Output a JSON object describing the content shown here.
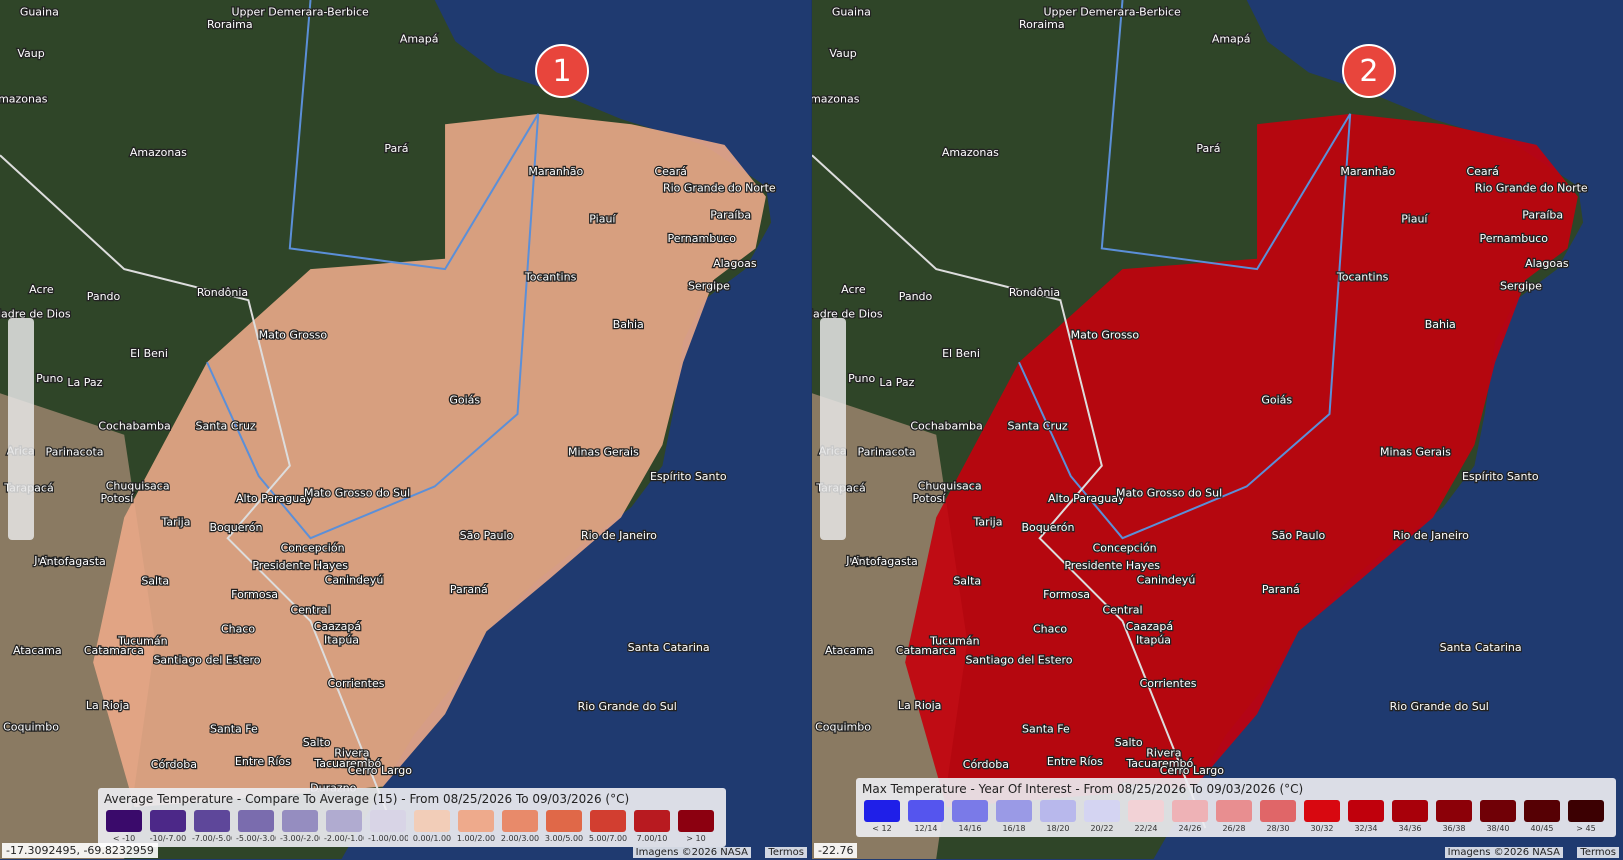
{
  "close_button": "×",
  "map_labels": [
    "Guaina",
    "Roraima",
    "Upper Demerara-Berbice",
    "Amapá",
    "Vaup",
    "mazonas",
    "Amazonas",
    "Pará",
    "Maranhão",
    "Ceará",
    "Rio Grande do Norte",
    "Piauí",
    "Paraíba",
    "Pernambuco",
    "Alagoas",
    "Sergipe",
    "Tocantins",
    "Acre",
    "Pando",
    "Rondônia",
    "Madre de Dios",
    "Mato Grosso",
    "Bahia",
    "El Beni",
    "Puno",
    "La Paz",
    "Goiás",
    "Cochabamba",
    "Santa Cruz",
    "Arica",
    "Parinacota",
    "Minas Gerais",
    "Tarapacá",
    "Chuquisaca",
    "Potosí",
    "Espírito Santo",
    "Alto Paraguay",
    "Mato Grosso do Sul",
    "Tarija",
    "Boquerón",
    "Concepción",
    "Presidente Hayes",
    "Jujuy",
    "Antofagasta",
    "São Paulo",
    "Rio de Janeiro",
    "Salta",
    "Canindeyú",
    "Formosa",
    "Paraná",
    "Central",
    "Caazapá",
    "Itapúa",
    "Chaco",
    "Tucumán",
    "Catamarca",
    "Santiago del Estero",
    "Santa Catarina",
    "Atacama",
    "Corrientes",
    "Rio Grande do Sul",
    "La Rioja",
    "Santa Fe",
    "Salto",
    "Rivera",
    "Coquimbo",
    "Córdoba",
    "Entre Ríos",
    "Tacuarembó",
    "Cerro Largo",
    "Durazno"
  ],
  "panels": [
    {
      "marker": "1",
      "legend": {
        "title": "Average Temperature - Compare To Average (15) - From 08/25/2026 To 09/03/2026 (°C)",
        "bins": [
          {
            "label": "< -10",
            "color": "#3a0a6b"
          },
          {
            "label": "-10/-7.00",
            "color": "#4c2888"
          },
          {
            "label": "-7.00/-5.00",
            "color": "#5e479a"
          },
          {
            "label": "-5.00/-3.00",
            "color": "#7a6cae"
          },
          {
            "label": "-3.00/-2.00",
            "color": "#958dc0"
          },
          {
            "label": "-2.00/-1.00",
            "color": "#b0abd0"
          },
          {
            "label": "-1.00/0.00",
            "color": "#d8d4e6"
          },
          {
            "label": "0.00/1.00",
            "color": "#f2cdb8"
          },
          {
            "label": "1.00/2.00",
            "color": "#eeaa8c"
          },
          {
            "label": "2.00/3.00",
            "color": "#e88a6a"
          },
          {
            "label": "3.00/5.00",
            "color": "#e06848"
          },
          {
            "label": "5.00/7.00",
            "color": "#d23e30"
          },
          {
            "label": "7.00/10",
            "color": "#b81a20"
          },
          {
            "label": "> 10",
            "color": "#8c0010"
          }
        ]
      },
      "overlay_color": "#eaa888",
      "coordinates": "-17.3092495, -69.8232959",
      "attribution": "Imagens ©2026 NASA",
      "terms": "Termos"
    },
    {
      "marker": "2",
      "legend": {
        "title": "Max Temperature - Year Of Interest - From 08/25/2026 To 09/03/2026 (°C)",
        "bins": [
          {
            "label": "< 12",
            "color": "#1f1fe8"
          },
          {
            "label": "12/14",
            "color": "#5555ee"
          },
          {
            "label": "14/16",
            "color": "#7a7ae8"
          },
          {
            "label": "16/18",
            "color": "#9a9ae6"
          },
          {
            "label": "18/20",
            "color": "#b8b8ec"
          },
          {
            "label": "20/22",
            "color": "#d4d4f2"
          },
          {
            "label": "22/24",
            "color": "#f2d2d6"
          },
          {
            "label": "24/26",
            "color": "#eeb2b6"
          },
          {
            "label": "26/28",
            "color": "#e88e90"
          },
          {
            "label": "28/30",
            "color": "#e06668"
          },
          {
            "label": "30/32",
            "color": "#d80810"
          },
          {
            "label": "32/34",
            "color": "#c0000c"
          },
          {
            "label": "34/36",
            "color": "#a8000a"
          },
          {
            "label": "36/38",
            "color": "#8c0008"
          },
          {
            "label": "38/40",
            "color": "#700006"
          },
          {
            "label": "40/45",
            "color": "#560004"
          },
          {
            "label": "> 45",
            "color": "#3c0002"
          }
        ]
      },
      "overlay_color": "#c4000c",
      "coordinates": "-22.76",
      "attribution": "Imagens ©2026 NASA",
      "terms": "Termos"
    }
  ]
}
